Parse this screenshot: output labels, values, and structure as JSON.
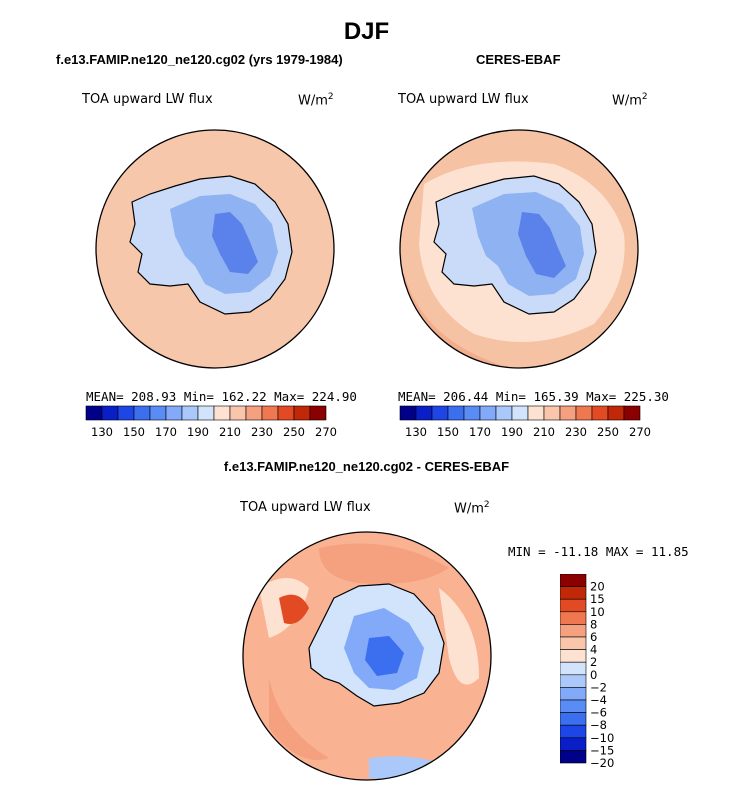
{
  "figure": {
    "title": "DJF"
  },
  "chart_data": [
    {
      "type": "heatmap",
      "title": "f.e13.FAMIP.ne120_ne120.cg02 (yrs 1979-1984)",
      "variable": "TOA upward LW flux",
      "units_base": "W/m",
      "units_exp": "2",
      "projection": "south polar stereographic",
      "stats_label": "MEAN= 208.93   Min= 162.22   Max= 224.90",
      "mean": 208.93,
      "min": 162.22,
      "max": 224.9,
      "levels": [
        130,
        140,
        150,
        160,
        170,
        180,
        190,
        200,
        210,
        220,
        230,
        240,
        250,
        260,
        270
      ],
      "tick_labels": [
        "130",
        "150",
        "170",
        "190",
        "210",
        "230",
        "250",
        "270"
      ]
    },
    {
      "type": "heatmap",
      "title": "CERES-EBAF",
      "variable": "TOA upward LW flux",
      "units_base": "W/m",
      "units_exp": "2",
      "projection": "south polar stereographic",
      "stats_label": "MEAN= 206.44   Min= 165.39   Max= 225.30",
      "mean": 206.44,
      "min": 165.39,
      "max": 225.3,
      "levels": [
        130,
        140,
        150,
        160,
        170,
        180,
        190,
        200,
        210,
        220,
        230,
        240,
        250,
        260,
        270
      ],
      "tick_labels": [
        "130",
        "150",
        "170",
        "190",
        "210",
        "230",
        "250",
        "270"
      ]
    },
    {
      "type": "heatmap",
      "title": "f.e13.FAMIP.ne120_ne120.cg02 - CERES-EBAF",
      "variable": "TOA upward LW flux",
      "units_base": "W/m",
      "units_exp": "2",
      "projection": "south polar stereographic",
      "stats_label": "MIN = -11.18 MAX =  11.85",
      "min": -11.18,
      "max": 11.85,
      "levels": [
        -20,
        -15,
        -10,
        -8,
        -6,
        -4,
        -2,
        0,
        2,
        4,
        6,
        8,
        10,
        15,
        20
      ],
      "tick_labels": [
        "20",
        "15",
        "10",
        "8",
        "6",
        "4",
        "2",
        "0",
        "−2",
        "−4",
        "−6",
        "−8",
        "−10",
        "−15",
        "−20"
      ]
    }
  ],
  "colors": {
    "abs_scale": [
      "#00008b",
      "#0a1ec8",
      "#1e46e6",
      "#3c6ef0",
      "#5a8cf5",
      "#82aaf8",
      "#aac8fa",
      "#d2e4fc",
      "#fde2d2",
      "#f9c6ab",
      "#f5a07e",
      "#f07850",
      "#e24a24",
      "#c02808",
      "#8b0000"
    ],
    "diff_scale": [
      "#00008b",
      "#0a1ec8",
      "#1e46e6",
      "#3c6ef0",
      "#5a8cf5",
      "#82aaf8",
      "#aac8fa",
      "#d2e4fc",
      "#fde2d2",
      "#f9c6ab",
      "#f5a07e",
      "#f07850",
      "#e24a24",
      "#c02808",
      "#8b0000"
    ],
    "ocean_model": "#f7c7ab",
    "ocean_ceres": "#f6c2a4",
    "ocean_diff": "#f9b292",
    "ice_light": "#c9dbf8",
    "ice_mid": "#8fb2f2",
    "ice_dark": "#5a82ea"
  }
}
